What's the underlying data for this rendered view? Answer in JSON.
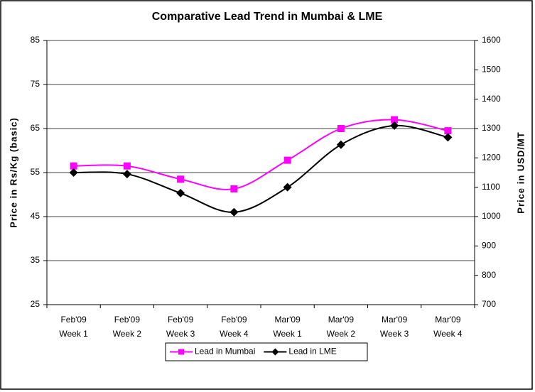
{
  "chart_data": {
    "type": "line",
    "title": "Comparative Lead Trend in Mumbai & LME",
    "y_label": "Price in Rs/Kg (basic)",
    "y2_label": "Price in USD/MT",
    "categories": [
      [
        "Feb'09",
        "Week 1"
      ],
      [
        "Feb'09",
        "Week 2"
      ],
      [
        "Feb'09",
        "Week 3"
      ],
      [
        "Feb'09",
        "Week 4"
      ],
      [
        "Mar'09",
        "Week 1"
      ],
      [
        "Mar'09",
        "Week 2"
      ],
      [
        "Mar'09",
        "Week 3"
      ],
      [
        "Mar'09",
        "Week 4"
      ]
    ],
    "series": [
      {
        "name": "Lead in Mumbai",
        "color": "#ff00ff",
        "marker": "square",
        "values": [
          56.5,
          56.5,
          53.5,
          51.3,
          57.8,
          65,
          67,
          64.5
        ]
      },
      {
        "name": "Lead in LME",
        "color": "#000000",
        "marker": "diamond",
        "axis": "y2",
        "values": [
          1150,
          1145,
          1080,
          1015,
          1100,
          1245,
          1310,
          1270
        ]
      }
    ],
    "ylim": [
      25,
      85
    ],
    "yticks": [
      25,
      35,
      45,
      55,
      65,
      75,
      85
    ],
    "y2lim": [
      700,
      1600
    ],
    "y2ticks": [
      700,
      800,
      900,
      1000,
      1100,
      1200,
      1300,
      1400,
      1500,
      1600
    ],
    "grid": true,
    "smooth": true,
    "legend": "bottom"
  }
}
